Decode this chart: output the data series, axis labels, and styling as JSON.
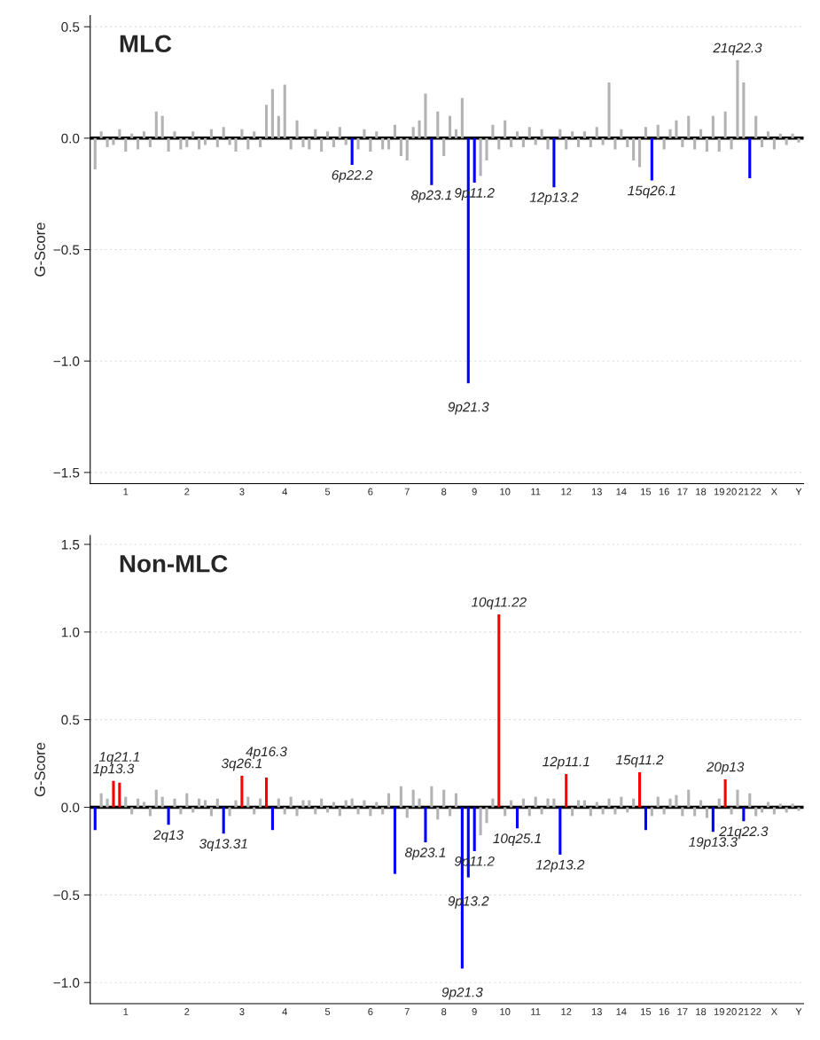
{
  "chart_data": [
    {
      "type": "bar",
      "title": "MLC",
      "ylabel": "G-Score",
      "ylim": [
        -1.55,
        0.55
      ],
      "yticks": [
        {
          "value": -1.5,
          "label": "−1.5"
        },
        {
          "value": -1.0,
          "label": "−1.0"
        },
        {
          "value": -0.5,
          "label": "−0.5"
        },
        {
          "value": 0,
          "label": "0.0"
        },
        {
          "value": 0.5,
          "label": "0.5"
        }
      ],
      "grid": "y",
      "ref_lines": [
        {
          "axis": "y",
          "value": 0,
          "color": "#000000"
        }
      ],
      "categories": [
        null,
        null,
        null,
        null,
        null,
        "1",
        null,
        null,
        null,
        null,
        null,
        null,
        null,
        null,
        null,
        "2",
        null,
        null,
        null,
        null,
        null,
        null,
        null,
        null,
        "3",
        null,
        null,
        null,
        null,
        null,
        null,
        "4",
        null,
        null,
        null,
        null,
        null,
        null,
        "5",
        null,
        null,
        null,
        null,
        null,
        null,
        "6",
        null,
        null,
        null,
        null,
        null,
        "7",
        null,
        null,
        null,
        null,
        null,
        "8",
        null,
        null,
        null,
        null,
        "9",
        null,
        null,
        null,
        null,
        "10",
        null,
        null,
        null,
        null,
        "11",
        null,
        null,
        null,
        null,
        "12",
        null,
        null,
        null,
        null,
        "13",
        null,
        null,
        null,
        "14",
        null,
        null,
        null,
        "15",
        null,
        null,
        "16",
        null,
        null,
        "17",
        null,
        null,
        "18",
        null,
        null,
        "19",
        null,
        "20",
        null,
        "21",
        null,
        "22",
        null,
        null,
        "X",
        null,
        null,
        null,
        "Y"
      ],
      "values": [
        -0.14,
        0.03,
        -0.04,
        -0.03,
        0.04,
        -0.06,
        0.02,
        -0.05,
        0.03,
        -0.04,
        0.12,
        0.1,
        -0.06,
        0.03,
        -0.05,
        -0.04,
        0.03,
        -0.05,
        -0.03,
        0.04,
        -0.04,
        0.05,
        -0.03,
        -0.06,
        0.04,
        -0.05,
        0.03,
        -0.04,
        0.15,
        0.22,
        0.1,
        0.24,
        -0.05,
        0.08,
        -0.04,
        -0.05,
        0.04,
        -0.06,
        0.03,
        -0.04,
        0.05,
        -0.03,
        -0.12,
        -0.05,
        0.04,
        -0.06,
        0.03,
        -0.05,
        -0.05,
        0.06,
        -0.08,
        -0.1,
        0.05,
        0.08,
        0.2,
        -0.21,
        0.12,
        -0.08,
        0.1,
        0.04,
        0.18,
        -1.1,
        -0.2,
        -0.17,
        -0.1,
        0.06,
        -0.05,
        0.08,
        -0.04,
        0.03,
        -0.04,
        0.05,
        -0.03,
        0.04,
        -0.05,
        -0.22,
        0.04,
        -0.05,
        0.03,
        -0.04,
        0.03,
        -0.04,
        0.05,
        -0.03,
        0.25,
        -0.05,
        0.04,
        -0.04,
        -0.1,
        -0.13,
        0.05,
        -0.19,
        0.06,
        -0.05,
        0.04,
        0.08,
        -0.04,
        0.1,
        -0.05,
        0.04,
        -0.06,
        0.1,
        -0.06,
        0.12,
        -0.05,
        0.35,
        0.25,
        -0.18,
        0.1,
        -0.04,
        0.03,
        -0.05,
        0.02,
        -0.03,
        0.02,
        -0.02
      ],
      "colors": [
        "#b3b3b3",
        "#b3b3b3",
        "#b3b3b3",
        "#b3b3b3",
        "#b3b3b3",
        "#b3b3b3",
        "#b3b3b3",
        "#b3b3b3",
        "#b3b3b3",
        "#b3b3b3",
        "#b3b3b3",
        "#b3b3b3",
        "#b3b3b3",
        "#b3b3b3",
        "#b3b3b3",
        "#b3b3b3",
        "#b3b3b3",
        "#b3b3b3",
        "#b3b3b3",
        "#b3b3b3",
        "#b3b3b3",
        "#b3b3b3",
        "#b3b3b3",
        "#b3b3b3",
        "#b3b3b3",
        "#b3b3b3",
        "#b3b3b3",
        "#b3b3b3",
        "#b3b3b3",
        "#b3b3b3",
        "#b3b3b3",
        "#b3b3b3",
        "#b3b3b3",
        "#b3b3b3",
        "#b3b3b3",
        "#b3b3b3",
        "#b3b3b3",
        "#b3b3b3",
        "#b3b3b3",
        "#b3b3b3",
        "#b3b3b3",
        "#b3b3b3",
        "#0000ff",
        "#b3b3b3",
        "#b3b3b3",
        "#b3b3b3",
        "#b3b3b3",
        "#b3b3b3",
        "#b3b3b3",
        "#b3b3b3",
        "#b3b3b3",
        "#b3b3b3",
        "#b3b3b3",
        "#b3b3b3",
        "#b3b3b3",
        "#0000ff",
        "#b3b3b3",
        "#b3b3b3",
        "#b3b3b3",
        "#b3b3b3",
        "#b3b3b3",
        "#0000ff",
        "#0000ff",
        "#b3b3b3",
        "#b3b3b3",
        "#b3b3b3",
        "#b3b3b3",
        "#b3b3b3",
        "#b3b3b3",
        "#b3b3b3",
        "#b3b3b3",
        "#b3b3b3",
        "#b3b3b3",
        "#b3b3b3",
        "#b3b3b3",
        "#0000ff",
        "#b3b3b3",
        "#b3b3b3",
        "#b3b3b3",
        "#b3b3b3",
        "#b3b3b3",
        "#b3b3b3",
        "#b3b3b3",
        "#b3b3b3",
        "#b3b3b3",
        "#b3b3b3",
        "#b3b3b3",
        "#b3b3b3",
        "#b3b3b3",
        "#b3b3b3",
        "#b3b3b3",
        "#0000ff",
        "#b3b3b3",
        "#b3b3b3",
        "#b3b3b3",
        "#b3b3b3",
        "#b3b3b3",
        "#b3b3b3",
        "#b3b3b3",
        "#b3b3b3",
        "#b3b3b3",
        "#b3b3b3",
        "#b3b3b3",
        "#b3b3b3",
        "#b3b3b3",
        "#b3b3b3",
        "#b3b3b3",
        "#0000ff",
        "#b3b3b3",
        "#b3b3b3",
        "#b3b3b3",
        "#b3b3b3",
        "#b3b3b3",
        "#b3b3b3",
        "#b3b3b3",
        "#b3b3b3"
      ],
      "annotations": [
        {
          "text": "6p22.2",
          "y": -0.12
        },
        {
          "text": "8p23.1",
          "y": -0.21
        },
        {
          "text": "9p11.2",
          "y": -0.2
        },
        {
          "text": "9p21.3",
          "y": -1.1
        },
        {
          "text": "12p13.2",
          "y": -0.22
        },
        {
          "text": "15q26.1",
          "y": -0.19
        },
        {
          "text": "21q22.3",
          "y": 0.35
        }
      ]
    },
    {
      "type": "bar",
      "title": "Non-MLC",
      "ylabel": "G-Score",
      "ylim": [
        -1.12,
        1.55
      ],
      "yticks": [
        {
          "value": -1.0,
          "label": "−1.0"
        },
        {
          "value": -0.5,
          "label": "−0.5"
        },
        {
          "value": 0,
          "label": "0.0"
        },
        {
          "value": 0.5,
          "label": "0.5"
        },
        {
          "value": 1.0,
          "label": "1.0"
        },
        {
          "value": 1.5,
          "label": "1.5"
        }
      ],
      "grid": "y",
      "ref_lines": [
        {
          "axis": "y",
          "value": 0,
          "color": "#000000"
        }
      ],
      "categories": [
        null,
        null,
        null,
        null,
        null,
        "1",
        null,
        null,
        null,
        null,
        null,
        null,
        null,
        null,
        null,
        "2",
        null,
        null,
        null,
        null,
        null,
        null,
        null,
        null,
        "3",
        null,
        null,
        null,
        null,
        null,
        null,
        "4",
        null,
        null,
        null,
        null,
        null,
        null,
        "5",
        null,
        null,
        null,
        null,
        null,
        null,
        "6",
        null,
        null,
        null,
        null,
        null,
        "7",
        null,
        null,
        null,
        null,
        null,
        "8",
        null,
        null,
        null,
        null,
        "9",
        null,
        null,
        null,
        null,
        "10",
        null,
        null,
        null,
        null,
        "11",
        null,
        null,
        null,
        null,
        "12",
        null,
        null,
        null,
        null,
        "13",
        null,
        null,
        null,
        "14",
        null,
        null,
        null,
        "15",
        null,
        null,
        "16",
        null,
        null,
        "17",
        null,
        null,
        "18",
        null,
        null,
        "19",
        null,
        "20",
        null,
        "21",
        null,
        "22",
        null,
        null,
        "X",
        null,
        null,
        null,
        "Y"
      ],
      "values": [
        -0.13,
        0.08,
        0.05,
        0.15,
        0.14,
        0.06,
        -0.04,
        0.05,
        0.03,
        -0.05,
        0.1,
        0.06,
        -0.1,
        0.05,
        -0.04,
        0.08,
        -0.03,
        0.05,
        0.04,
        -0.05,
        0.05,
        -0.15,
        -0.05,
        0.04,
        0.18,
        0.06,
        -0.04,
        0.05,
        0.17,
        -0.13,
        0.05,
        -0.04,
        0.06,
        -0.05,
        0.04,
        0.04,
        -0.04,
        0.05,
        -0.03,
        0.03,
        -0.05,
        0.04,
        0.05,
        -0.04,
        0.04,
        -0.05,
        0.03,
        -0.04,
        0.08,
        -0.38,
        0.12,
        -0.06,
        0.1,
        0.05,
        -0.2,
        0.12,
        -0.07,
        0.1,
        -0.05,
        0.08,
        -0.92,
        -0.4,
        -0.25,
        -0.16,
        -0.09,
        0.05,
        1.1,
        -0.05,
        0.04,
        -0.12,
        0.05,
        -0.05,
        0.06,
        -0.04,
        0.05,
        0.05,
        -0.27,
        0.19,
        -0.05,
        0.04,
        0.04,
        -0.05,
        0.03,
        -0.04,
        0.05,
        -0.04,
        0.06,
        -0.03,
        0.05,
        0.2,
        -0.13,
        -0.05,
        0.06,
        -0.04,
        0.05,
        0.07,
        -0.05,
        0.1,
        -0.05,
        0.04,
        -0.06,
        -0.14,
        0.05,
        0.16,
        -0.04,
        0.1,
        -0.08,
        0.08,
        -0.05,
        -0.03,
        0.03,
        -0.04,
        0.02,
        -0.03,
        0.02,
        -0.02
      ],
      "colors": [
        "#0000ff",
        "#b3b3b3",
        "#b3b3b3",
        "#ff0000",
        "#ff0000",
        "#b3b3b3",
        "#b3b3b3",
        "#b3b3b3",
        "#b3b3b3",
        "#b3b3b3",
        "#b3b3b3",
        "#b3b3b3",
        "#0000ff",
        "#b3b3b3",
        "#b3b3b3",
        "#b3b3b3",
        "#b3b3b3",
        "#b3b3b3",
        "#b3b3b3",
        "#b3b3b3",
        "#b3b3b3",
        "#0000ff",
        "#b3b3b3",
        "#b3b3b3",
        "#ff0000",
        "#b3b3b3",
        "#b3b3b3",
        "#b3b3b3",
        "#ff0000",
        "#0000ff",
        "#b3b3b3",
        "#b3b3b3",
        "#b3b3b3",
        "#b3b3b3",
        "#b3b3b3",
        "#b3b3b3",
        "#b3b3b3",
        "#b3b3b3",
        "#b3b3b3",
        "#b3b3b3",
        "#b3b3b3",
        "#b3b3b3",
        "#b3b3b3",
        "#b3b3b3",
        "#b3b3b3",
        "#b3b3b3",
        "#b3b3b3",
        "#b3b3b3",
        "#b3b3b3",
        "#0000ff",
        "#b3b3b3",
        "#b3b3b3",
        "#b3b3b3",
        "#b3b3b3",
        "#0000ff",
        "#b3b3b3",
        "#b3b3b3",
        "#b3b3b3",
        "#b3b3b3",
        "#b3b3b3",
        "#0000ff",
        "#0000ff",
        "#0000ff",
        "#b3b3b3",
        "#b3b3b3",
        "#b3b3b3",
        "#ff0000",
        "#b3b3b3",
        "#b3b3b3",
        "#0000ff",
        "#b3b3b3",
        "#b3b3b3",
        "#b3b3b3",
        "#b3b3b3",
        "#b3b3b3",
        "#b3b3b3",
        "#0000ff",
        "#ff0000",
        "#b3b3b3",
        "#b3b3b3",
        "#b3b3b3",
        "#b3b3b3",
        "#b3b3b3",
        "#b3b3b3",
        "#b3b3b3",
        "#b3b3b3",
        "#b3b3b3",
        "#b3b3b3",
        "#b3b3b3",
        "#ff0000",
        "#0000ff",
        "#b3b3b3",
        "#b3b3b3",
        "#b3b3b3",
        "#b3b3b3",
        "#b3b3b3",
        "#b3b3b3",
        "#b3b3b3",
        "#b3b3b3",
        "#b3b3b3",
        "#b3b3b3",
        "#0000ff",
        "#b3b3b3",
        "#ff0000",
        "#b3b3b3",
        "#b3b3b3",
        "#0000ff",
        "#b3b3b3",
        "#b3b3b3",
        "#b3b3b3",
        "#b3b3b3",
        "#b3b3b3",
        "#b3b3b3",
        "#b3b3b3",
        "#b3b3b3",
        "#b3b3b3"
      ],
      "annotations": [
        {
          "text": "1p13.3",
          "y": 0.15
        },
        {
          "text": "1q21.1",
          "y": 0.14
        },
        {
          "text": "2q13",
          "y": -0.1
        },
        {
          "text": "3q13.31",
          "y": -0.15
        },
        {
          "text": "3q26.1",
          "y": 0.18
        },
        {
          "text": "4p16.3",
          "y": 0.17
        },
        {
          "text": "8p23.1",
          "y": -0.2
        },
        {
          "text": "9p11.2",
          "y": -0.25
        },
        {
          "text": "9p13.2",
          "y": -0.4
        },
        {
          "text": "9p21.3",
          "y": -0.92
        },
        {
          "text": "10q11.22",
          "y": 1.1
        },
        {
          "text": "10q25.1",
          "y": -0.12
        },
        {
          "text": "12p11.1",
          "y": 0.19
        },
        {
          "text": "12p13.2",
          "y": -0.27
        },
        {
          "text": "15q11.2",
          "y": 0.2
        },
        {
          "text": "19p13.3",
          "y": -0.14
        },
        {
          "text": "20p13",
          "y": 0.16
        },
        {
          "text": "21q22.3",
          "y": -0.08
        }
      ]
    }
  ]
}
